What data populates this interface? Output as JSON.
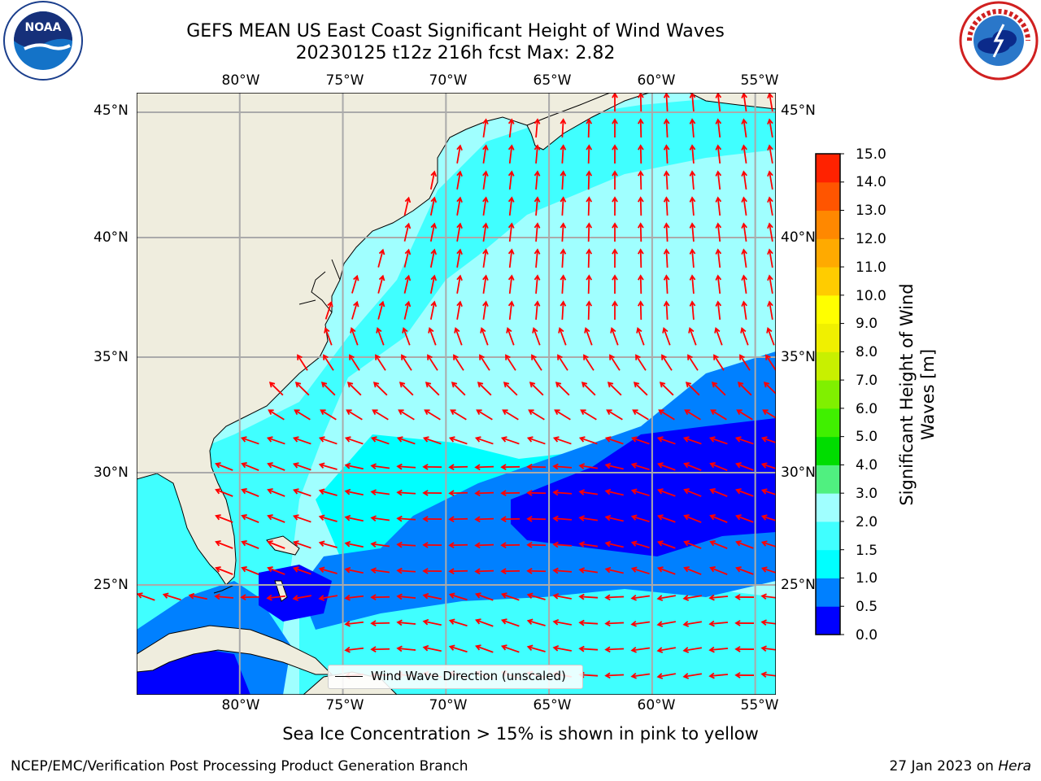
{
  "title": {
    "line1": "GEFS MEAN US East Coast Significant Height of Wind Waves",
    "line2": "20230125 t12z 216h fcst   Max: 2.82"
  },
  "logos": {
    "left": "NOAA",
    "right": "NATIONAL WEATHER SERVICE"
  },
  "map": {
    "projection": "Plate Carree",
    "lon_range": [
      -85,
      -54
    ],
    "lat_range": [
      20.5,
      46
    ],
    "lon_labels": [
      "80°W",
      "75°W",
      "70°W",
      "65°W",
      "60°W",
      "55°W"
    ],
    "lat_labels": [
      "45°N",
      "40°N",
      "35°N",
      "30°N",
      "25°N"
    ],
    "grid": true,
    "land_color": "#efedde",
    "arrow_color": "#ff0000",
    "legend_text": "Wind Wave Direction (unscaled)",
    "legend_placement": "bottom-center"
  },
  "colorbar": {
    "label": "Significant Height of Wind Waves [m]",
    "label_line1": "Significant Height of Wind",
    "label_line2": "Waves [m]",
    "ticks": [
      "15.0",
      "14.0",
      "13.0",
      "12.0",
      "11.0",
      "10.0",
      "9.0",
      "8.0",
      "7.0",
      "6.0",
      "5.0",
      "4.0",
      "3.0",
      "2.0",
      "1.5",
      "1.0",
      "0.5",
      "0.0"
    ],
    "colors_bottom_to_top": [
      "#0000ff",
      "#0080ff",
      "#00ffff",
      "#40ffff",
      "#a0ffff",
      "#50f080",
      "#00dd00",
      "#40f000",
      "#80f000",
      "#c8f000",
      "#f0f000",
      "#ffff00",
      "#ffcc00",
      "#ffaa00",
      "#ff8800",
      "#ff5500",
      "#ff2200"
    ]
  },
  "note": "Sea Ice Concentration > 15% is shown in pink to yellow",
  "footer": {
    "left": "NCEP/EMC/Verification Post Processing Product Generation Branch",
    "right_date": "27 Jan 2023 on",
    "right_host": "Hera"
  }
}
